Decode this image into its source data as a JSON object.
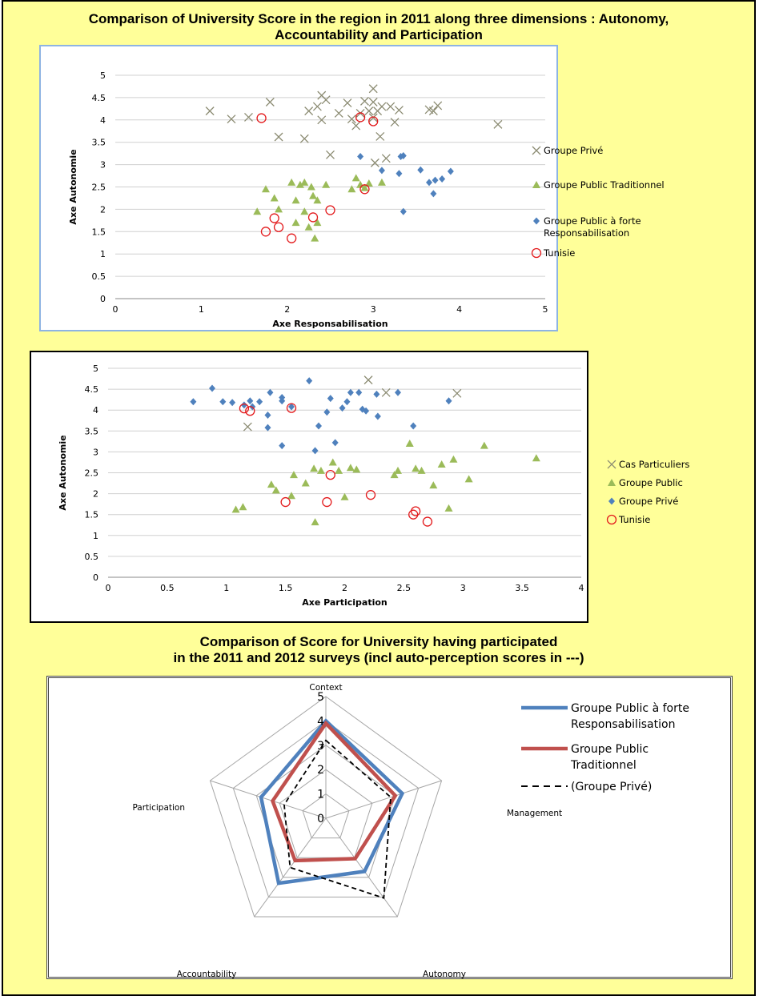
{
  "page": {
    "title1_line1": "Comparison of University Score in the region in 2011 along three dimensions : Autonomy,",
    "title1_line2": "Accountability and Participation",
    "title2_line1": "Comparison of Score for University having participated",
    "title2_line2": "in the 2011 and 2012 surveys (incl auto-perception scores in ---)"
  },
  "colors": {
    "page_bg": "#ffff99",
    "prive_marker": "#8c8c73",
    "public_green": "#9bbb59",
    "public_blue": "#4f81bd",
    "tunisie_red": "#e31a1c",
    "radar_blue": "#4f81bd",
    "radar_red": "#c0504d",
    "radar_black": "#000000"
  },
  "chart_data": [
    {
      "type": "scatter",
      "xlabel": "Axe Responsabilisation",
      "ylabel": "Axe Autonomie",
      "xlim": [
        0,
        5
      ],
      "ylim": [
        0,
        5
      ],
      "x_ticks": [
        "0",
        "1",
        "2",
        "3",
        "4",
        "5"
      ],
      "y_ticks": [
        "0",
        "0.5",
        "1",
        "1.5",
        "2",
        "2.5",
        "3",
        "3.5",
        "4",
        "4.5",
        "5"
      ],
      "grid": "horizontal",
      "legend_position": "right",
      "series": [
        {
          "name": "Groupe Privé",
          "marker": "x",
          "color": "#8c8c73",
          "points": [
            [
              1.1,
              4.2
            ],
            [
              1.35,
              4.02
            ],
            [
              1.55,
              4.06
            ],
            [
              1.8,
              4.4
            ],
            [
              1.9,
              3.62
            ],
            [
              2.2,
              3.58
            ],
            [
              2.25,
              4.2
            ],
            [
              2.35,
              4.3
            ],
            [
              2.4,
              4.55
            ],
            [
              2.4,
              4.0
            ],
            [
              2.45,
              4.45
            ],
            [
              2.5,
              3.22
            ],
            [
              2.6,
              4.15
            ],
            [
              2.7,
              4.38
            ],
            [
              2.75,
              4.02
            ],
            [
              2.8,
              3.87
            ],
            [
              2.85,
              4.15
            ],
            [
              2.9,
              4.42
            ],
            [
              2.95,
              4.2
            ],
            [
              3.0,
              4.05
            ],
            [
              3.0,
              4.4
            ],
            [
              3.0,
              4.7
            ],
            [
              3.02,
              3.04
            ],
            [
              3.05,
              4.2
            ],
            [
              3.08,
              3.63
            ],
            [
              3.1,
              4.3
            ],
            [
              3.15,
              3.14
            ],
            [
              3.2,
              4.3
            ],
            [
              3.25,
              3.95
            ],
            [
              3.3,
              4.22
            ],
            [
              3.65,
              4.23
            ],
            [
              3.7,
              4.2
            ],
            [
              3.75,
              4.32
            ],
            [
              4.45,
              3.9
            ]
          ]
        },
        {
          "name": "Groupe Public Traditionnel",
          "marker": "triangle",
          "color": "#9bbb59",
          "points": [
            [
              1.65,
              1.95
            ],
            [
              1.75,
              2.45
            ],
            [
              1.85,
              2.25
            ],
            [
              1.9,
              2.0
            ],
            [
              2.05,
              2.6
            ],
            [
              2.1,
              1.7
            ],
            [
              2.1,
              2.2
            ],
            [
              2.15,
              2.55
            ],
            [
              2.2,
              2.6
            ],
            [
              2.2,
              1.95
            ],
            [
              2.25,
              1.6
            ],
            [
              2.28,
              2.5
            ],
            [
              2.3,
              2.3
            ],
            [
              2.32,
              1.35
            ],
            [
              2.35,
              1.7
            ],
            [
              2.35,
              2.2
            ],
            [
              2.45,
              2.55
            ],
            [
              2.75,
              2.45
            ],
            [
              2.8,
              2.7
            ],
            [
              2.85,
              2.55
            ],
            [
              2.9,
              2.48
            ],
            [
              2.95,
              2.58
            ],
            [
              3.1,
              2.6
            ]
          ]
        },
        {
          "name": "Groupe Public à forte\nResponsabilisation",
          "marker": "diamond",
          "color": "#4f81bd",
          "points": [
            [
              2.85,
              3.18
            ],
            [
              3.1,
              2.87
            ],
            [
              3.3,
              2.8
            ],
            [
              3.32,
              3.18
            ],
            [
              3.35,
              3.2
            ],
            [
              3.35,
              1.95
            ],
            [
              3.55,
              2.88
            ],
            [
              3.65,
              2.6
            ],
            [
              3.7,
              2.35
            ],
            [
              3.72,
              2.65
            ],
            [
              3.8,
              2.68
            ],
            [
              3.9,
              2.85
            ]
          ]
        },
        {
          "name": "Tunisie",
          "marker": "circle-open",
          "color": "#e31a1c",
          "points": [
            [
              1.7,
              4.04
            ],
            [
              2.85,
              4.06
            ],
            [
              3.0,
              3.97
            ],
            [
              2.9,
              2.45
            ],
            [
              2.5,
              1.98
            ],
            [
              1.85,
              1.8
            ],
            [
              2.3,
              1.82
            ],
            [
              1.75,
              1.5
            ],
            [
              1.9,
              1.6
            ],
            [
              2.05,
              1.35
            ]
          ]
        }
      ]
    },
    {
      "type": "scatter",
      "xlabel": "Axe Participation",
      "ylabel": "Axe Autonomie",
      "xlim": [
        0,
        4
      ],
      "ylim": [
        0,
        5
      ],
      "x_ticks": [
        "0",
        "0.5",
        "1",
        "1.5",
        "2",
        "2.5",
        "3",
        "3.5",
        "4"
      ],
      "y_ticks": [
        "0",
        "0.5",
        "1",
        "1.5",
        "2",
        "2.5",
        "3",
        "3.5",
        "4",
        "4.5",
        "5"
      ],
      "grid": "horizontal",
      "legend_position": "right",
      "series": [
        {
          "name": "Cas Particuliers",
          "marker": "x",
          "color": "#8c8c73",
          "points": [
            [
              1.18,
              3.6
            ],
            [
              2.2,
              4.72
            ],
            [
              2.35,
              4.42
            ],
            [
              2.95,
              4.4
            ]
          ]
        },
        {
          "name": "Groupe Public",
          "marker": "triangle",
          "color": "#9bbb59",
          "points": [
            [
              1.08,
              1.62
            ],
            [
              1.14,
              1.68
            ],
            [
              1.38,
              2.22
            ],
            [
              1.42,
              2.08
            ],
            [
              1.55,
              1.95
            ],
            [
              1.57,
              2.45
            ],
            [
              1.67,
              2.25
            ],
            [
              1.74,
              2.6
            ],
            [
              1.75,
              1.32
            ],
            [
              1.8,
              2.55
            ],
            [
              1.9,
              2.75
            ],
            [
              1.95,
              2.55
            ],
            [
              2.0,
              1.92
            ],
            [
              2.05,
              2.62
            ],
            [
              2.1,
              2.58
            ],
            [
              2.42,
              2.45
            ],
            [
              2.45,
              2.55
            ],
            [
              2.55,
              3.2
            ],
            [
              2.6,
              2.6
            ],
            [
              2.65,
              2.55
            ],
            [
              2.75,
              2.2
            ],
            [
              2.82,
              2.7
            ],
            [
              2.88,
              1.65
            ],
            [
              2.92,
              2.82
            ],
            [
              3.05,
              2.35
            ],
            [
              3.18,
              3.15
            ],
            [
              3.62,
              2.85
            ]
          ]
        },
        {
          "name": "Groupe Privé",
          "marker": "diamond",
          "color": "#4f81bd",
          "points": [
            [
              0.72,
              4.2
            ],
            [
              0.88,
              4.52
            ],
            [
              0.97,
              4.2
            ],
            [
              1.05,
              4.18
            ],
            [
              1.15,
              4.12
            ],
            [
              1.2,
              4.22
            ],
            [
              1.22,
              4.08
            ],
            [
              1.28,
              4.2
            ],
            [
              1.35,
              3.88
            ],
            [
              1.35,
              3.58
            ],
            [
              1.37,
              4.42
            ],
            [
              1.47,
              4.3
            ],
            [
              1.47,
              4.22
            ],
            [
              1.47,
              3.15
            ],
            [
              1.55,
              4.08
            ],
            [
              1.7,
              4.7
            ],
            [
              1.75,
              3.03
            ],
            [
              1.78,
              3.62
            ],
            [
              1.85,
              3.95
            ],
            [
              1.88,
              4.28
            ],
            [
              1.92,
              3.22
            ],
            [
              1.98,
              4.05
            ],
            [
              2.02,
              4.2
            ],
            [
              2.05,
              4.42
            ],
            [
              2.12,
              4.42
            ],
            [
              2.15,
              4.02
            ],
            [
              2.18,
              3.98
            ],
            [
              2.27,
              4.38
            ],
            [
              2.28,
              3.85
            ],
            [
              2.45,
              4.42
            ],
            [
              2.58,
              3.62
            ],
            [
              2.88,
              4.22
            ]
          ]
        },
        {
          "name": "Tunisie",
          "marker": "circle-open",
          "color": "#e31a1c",
          "points": [
            [
              1.15,
              4.04
            ],
            [
              1.2,
              3.98
            ],
            [
              1.55,
              4.05
            ],
            [
              1.5,
              1.8
            ],
            [
              1.85,
              1.8
            ],
            [
              1.88,
              2.45
            ],
            [
              2.22,
              1.97
            ],
            [
              2.58,
              1.5
            ],
            [
              2.6,
              1.58
            ],
            [
              2.7,
              1.33
            ]
          ]
        }
      ]
    },
    {
      "type": "radar",
      "axes": [
        "Context",
        "Management",
        "Autonomy",
        "Accountability",
        "Participation"
      ],
      "rlim": [
        0,
        5
      ],
      "r_ticks": [
        "0",
        "1",
        "2",
        "3",
        "4",
        "5"
      ],
      "legend_position": "right",
      "series": [
        {
          "name": "Groupe Public à forte\nResponsabilisation",
          "color": "#4f81bd",
          "style": "solid",
          "values": [
            4.0,
            3.3,
            2.7,
            3.3,
            2.8
          ]
        },
        {
          "name": "Groupe Public\nTraditionnel",
          "color": "#c0504d",
          "style": "solid",
          "values": [
            3.9,
            3.0,
            2.05,
            2.15,
            2.3
          ]
        },
        {
          "name": "(Groupe Privé)",
          "color": "#000000",
          "style": "dashed",
          "values": [
            3.2,
            2.8,
            4.05,
            2.5,
            1.8
          ]
        }
      ]
    }
  ]
}
